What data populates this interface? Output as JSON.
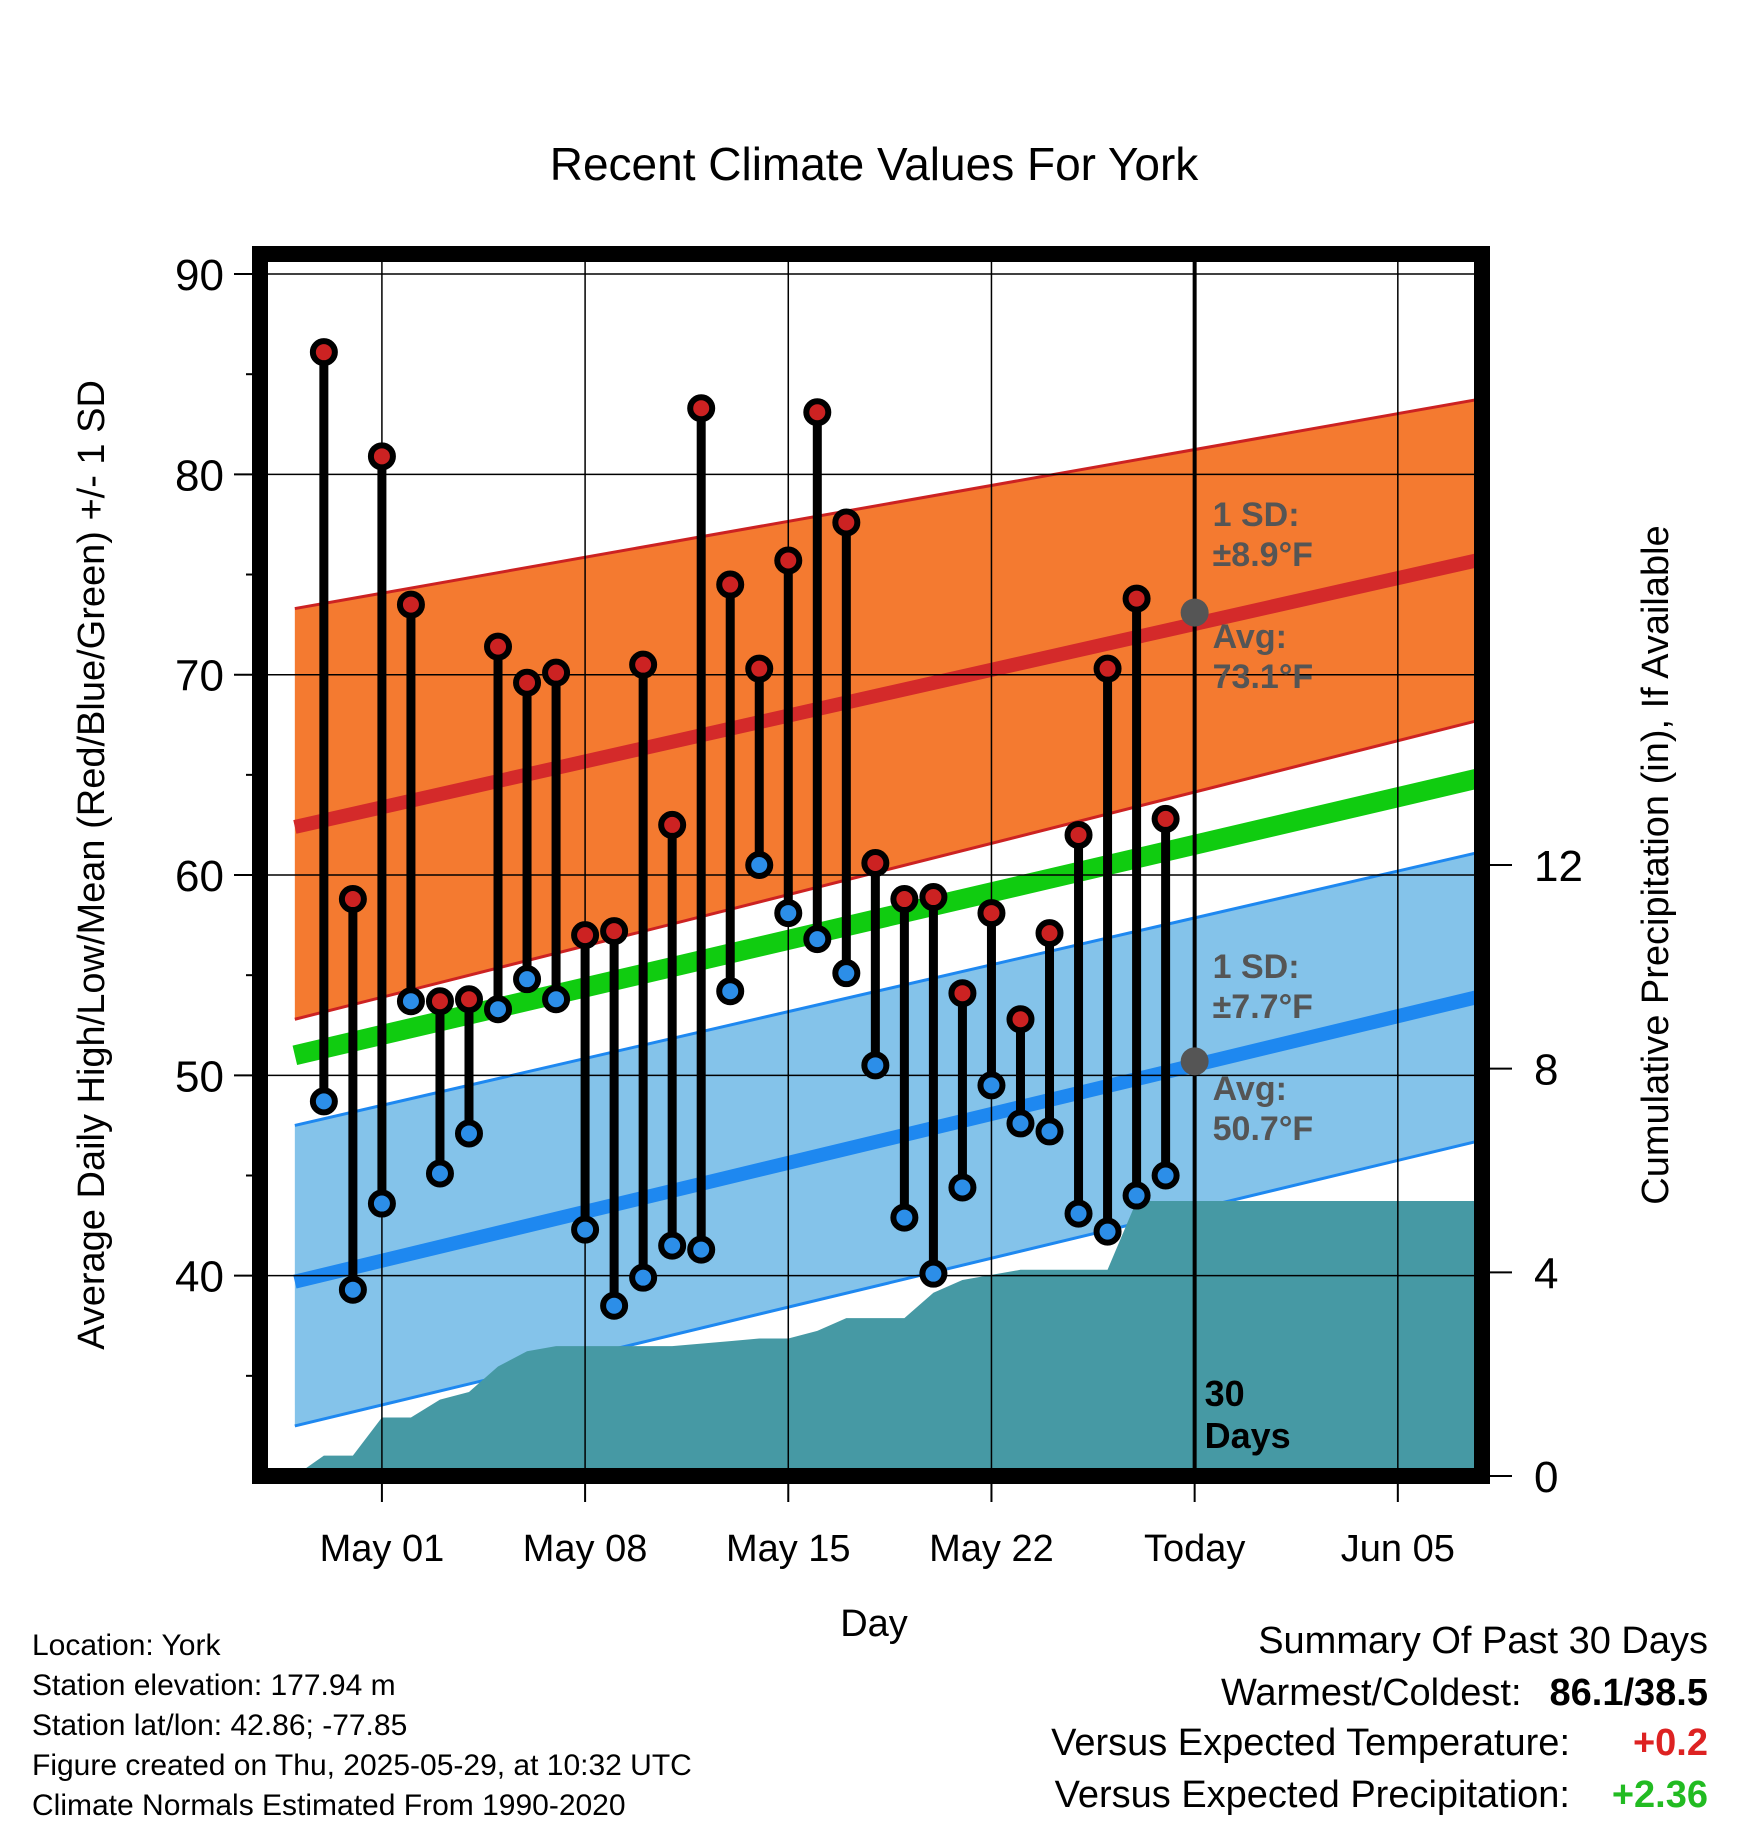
{
  "chart_data": {
    "type": "line",
    "title": "Recent Climate Values For York",
    "xlabel": "Day",
    "ylabel": "Average Daily High/Low/Mean (Red/Blue/Green) +/- 1 SD",
    "y2label": "Cumulative Precipitation (in), If Available",
    "ylim": [
      30,
      91
    ],
    "y2lim": [
      0,
      24
    ],
    "xlim": [
      -4.2,
      37.9
    ],
    "x_ticks": [
      {
        "x": 0,
        "label": "May 01"
      },
      {
        "x": 7,
        "label": "May 08"
      },
      {
        "x": 14,
        "label": "May 15"
      },
      {
        "x": 21,
        "label": "May 22"
      },
      {
        "x": 28,
        "label": "Today"
      },
      {
        "x": 35,
        "label": "Jun 05"
      }
    ],
    "y_ticks": [
      40,
      50,
      60,
      70,
      80,
      90
    ],
    "y2_ticks": [
      0,
      4,
      8,
      12
    ],
    "grid": true,
    "today_x": 28,
    "today_label": [
      "30",
      "Days"
    ],
    "days": [
      -2,
      -1,
      0,
      1,
      2,
      3,
      4,
      5,
      6,
      7,
      8,
      9,
      10,
      11,
      12,
      13,
      14,
      15,
      16,
      17,
      18,
      19,
      20,
      21,
      22,
      23,
      24,
      25,
      26,
      27
    ],
    "highs": [
      86.1,
      58.8,
      80.9,
      73.5,
      53.7,
      53.8,
      71.4,
      69.6,
      70.1,
      57.0,
      57.2,
      70.5,
      62.5,
      83.3,
      74.5,
      70.3,
      75.7,
      83.1,
      77.6,
      60.6,
      58.8,
      58.9,
      54.1,
      58.1,
      52.8,
      57.1,
      62.0,
      70.3,
      73.8,
      62.8
    ],
    "lows": [
      48.7,
      39.3,
      43.6,
      53.7,
      45.1,
      47.1,
      53.3,
      54.8,
      53.8,
      42.3,
      38.5,
      39.9,
      41.5,
      41.3,
      54.2,
      60.5,
      58.1,
      56.8,
      55.1,
      50.5,
      42.9,
      40.1,
      44.4,
      49.5,
      47.6,
      47.2,
      43.1,
      42.2,
      44.0,
      45.0
    ],
    "normals": {
      "x": [
        -3,
        38
      ],
      "high_mean": [
        62.4,
        75.8
      ],
      "high_sd_upper": [
        73.3,
        83.8
      ],
      "high_sd_lower": [
        52.8,
        67.8
      ],
      "low_mean": [
        39.7,
        54.0
      ],
      "low_sd_upper": [
        47.5,
        61.2
      ],
      "low_sd_lower": [
        32.5,
        46.8
      ],
      "daily_mean": [
        51.0,
        64.9
      ]
    },
    "precip": {
      "x": [
        -3,
        -2,
        -1,
        0,
        1,
        2,
        3,
        4,
        5,
        6,
        7,
        8,
        9,
        10,
        11,
        12,
        13,
        14,
        15,
        16,
        17,
        18,
        19,
        20,
        21,
        22,
        23,
        24,
        25,
        26,
        27,
        28,
        38
      ],
      "values": [
        0.0,
        0.4,
        0.4,
        1.15,
        1.15,
        1.5,
        1.65,
        2.15,
        2.45,
        2.55,
        2.55,
        2.55,
        2.55,
        2.55,
        2.6,
        2.65,
        2.7,
        2.7,
        2.85,
        3.1,
        3.1,
        3.1,
        3.6,
        3.85,
        3.95,
        4.05,
        4.05,
        4.05,
        4.05,
        5.4,
        5.4,
        5.4,
        5.4
      ]
    },
    "annotations": {
      "high_sd_label": [
        "1 SD:",
        "±8.9°F"
      ],
      "high_avg_label": [
        "Avg:",
        "73.1°F"
      ],
      "high_avg_value": 73.1,
      "low_sd_label": [
        "1 SD:",
        "±7.7°F"
      ],
      "low_avg_label": [
        "Avg:",
        "50.7°F"
      ],
      "low_avg_value": 50.7
    },
    "colors": {
      "high_band": "#f47a30",
      "high_line": "#d42a2a",
      "high_edge": "#cc2222",
      "low_band": "#84c3ea",
      "low_line": "#1e88f0",
      "low_edge": "#1e88f0",
      "mean_line": "#10cc10",
      "precip": "#4699a4",
      "high_dot": "#cc2222",
      "low_dot": "#2c8ee8",
      "annotation": "#555555"
    }
  },
  "info": {
    "location": "Location: York",
    "elevation": "Station elevation: 177.94 m",
    "latlon": "Station lat/lon: 42.86; -77.85",
    "created": "Figure created on Thu, 2025-05-29, at 10:32 UTC",
    "normals": "Climate Normals Estimated From 1990-2020"
  },
  "summary": {
    "title": "Summary Of Past 30 Days",
    "warm_cold_label": "Warmest/Coldest:",
    "warm_cold_value": "86.1/38.5",
    "temp_label": "Versus Expected Temperature:",
    "temp_value": "+0.2",
    "temp_color": "#dd2222",
    "precip_label": "Versus Expected Precipitation:",
    "precip_value": "+2.36",
    "precip_color": "#22bb22"
  }
}
